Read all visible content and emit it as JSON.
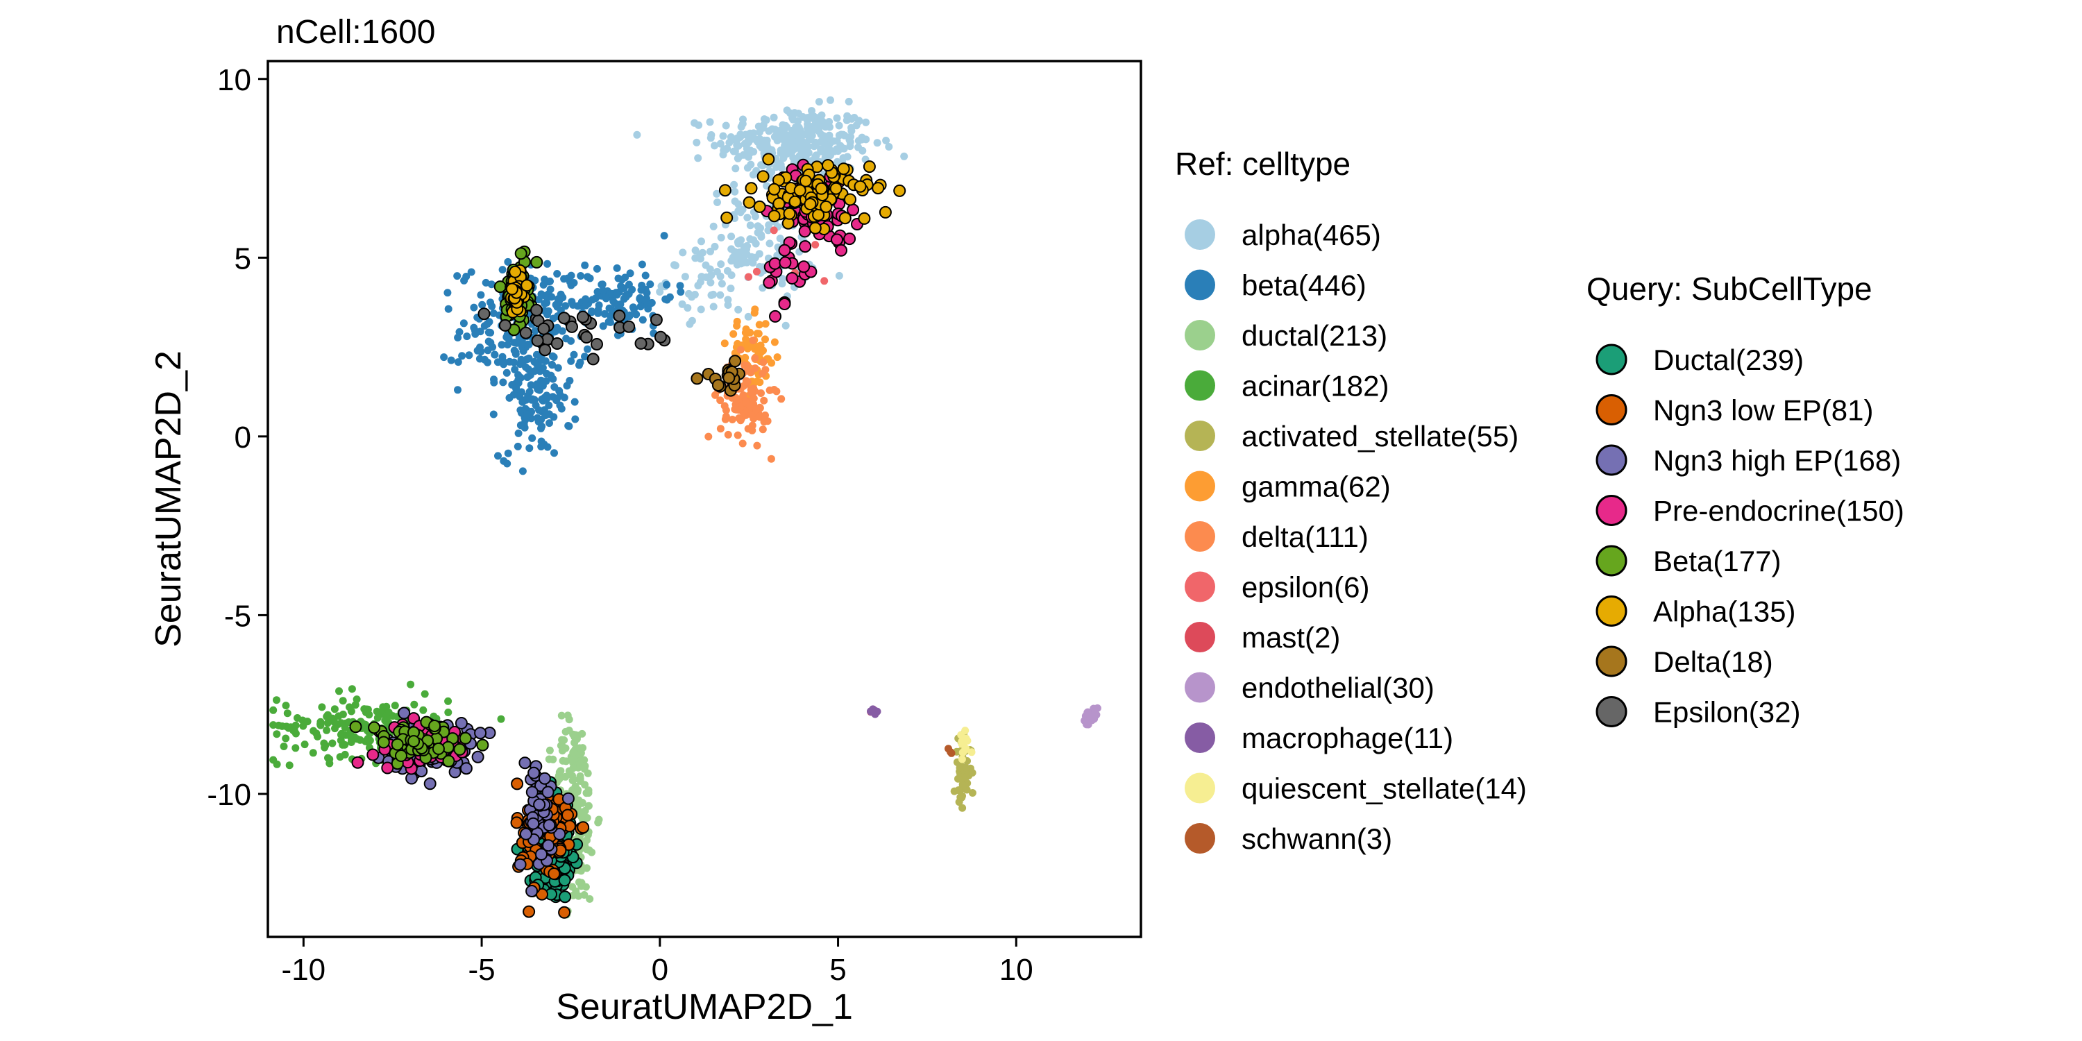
{
  "chart_data": {
    "type": "scatter",
    "title": "nCell:1600",
    "xlabel": "SeuratUMAP2D_1",
    "ylabel": "SeuratUMAP2D_2",
    "xlim": [
      -11,
      13.5
    ],
    "ylim": [
      -14,
      10.5
    ],
    "xticks": [
      -10,
      -5,
      0,
      5,
      10
    ],
    "yticks": [
      10,
      5,
      0,
      -5,
      -10
    ],
    "grid": false,
    "legends": [
      {
        "title": "Ref: celltype",
        "kind": "reference",
        "entries": [
          {
            "label": "alpha(465)",
            "color": "#a6cee3"
          },
          {
            "label": "beta(446)",
            "color": "#2a7fb8"
          },
          {
            "label": "ductal(213)",
            "color": "#9bd08d"
          },
          {
            "label": "acinar(182)",
            "color": "#4aab3a"
          },
          {
            "label": "activated_stellate(55)",
            "color": "#b5b455"
          },
          {
            "label": "gamma(62)",
            "color": "#fd9d33"
          },
          {
            "label": "delta(111)",
            "color": "#fc8b4f"
          },
          {
            "label": "epsilon(6)",
            "color": "#f0666a"
          },
          {
            "label": "mast(2)",
            "color": "#dd4a5a"
          },
          {
            "label": "endothelial(30)",
            "color": "#b794cb"
          },
          {
            "label": "macrophage(11)",
            "color": "#865ca4"
          },
          {
            "label": "quiescent_stellate(14)",
            "color": "#f6ee92"
          },
          {
            "label": "schwann(3)",
            "color": "#b55a2a"
          }
        ]
      },
      {
        "title": "Query: SubCellType",
        "kind": "query",
        "entries": [
          {
            "label": "Ductal(239)",
            "color": "#1b9e77"
          },
          {
            "label": "Ngn3 low EP(81)",
            "color": "#d95f02"
          },
          {
            "label": "Ngn3 high EP(168)",
            "color": "#7570b3"
          },
          {
            "label": "Pre-endocrine(150)",
            "color": "#e7298a"
          },
          {
            "label": "Beta(177)",
            "color": "#66a61e"
          },
          {
            "label": "Alpha(135)",
            "color": "#e6ab02"
          },
          {
            "label": "Delta(18)",
            "color": "#a6761d"
          },
          {
            "label": "Epsilon(32)",
            "color": "#666666"
          }
        ]
      }
    ],
    "reference_clusters": [
      {
        "group": "alpha",
        "n": 300,
        "cx": 3.8,
        "cy": 8.2,
        "sx": 1.1,
        "sy": 0.5
      },
      {
        "group": "alpha",
        "n": 120,
        "cx": 2.8,
        "cy": 5.4,
        "sx": 0.8,
        "sy": 0.8
      },
      {
        "group": "alpha",
        "n": 45,
        "cx": 1.4,
        "cy": 4.4,
        "sx": 0.6,
        "sy": 0.5
      },
      {
        "group": "beta",
        "n": 230,
        "cx": -3.8,
        "cy": 3.0,
        "sx": 0.9,
        "sy": 0.9
      },
      {
        "group": "beta",
        "n": 110,
        "cx": -3.5,
        "cy": 1.0,
        "sx": 0.5,
        "sy": 0.8
      },
      {
        "group": "beta",
        "n": 106,
        "cx": -1.2,
        "cy": 3.9,
        "sx": 0.8,
        "sy": 0.5
      },
      {
        "group": "ductal",
        "n": 213,
        "cx": -2.4,
        "cy": -10.5,
        "sx": 0.3,
        "sy": 1.3
      },
      {
        "group": "acinar",
        "n": 182,
        "cx": -8.3,
        "cy": -8.1,
        "sx": 1.2,
        "sy": 0.45
      },
      {
        "group": "activated_stellate",
        "n": 55,
        "cx": 8.5,
        "cy": -9.4,
        "sx": 0.12,
        "sy": 0.45
      },
      {
        "group": "gamma",
        "n": 62,
        "cx": 2.6,
        "cy": 2.3,
        "sx": 0.35,
        "sy": 0.5
      },
      {
        "group": "delta",
        "n": 111,
        "cx": 2.4,
        "cy": 1.1,
        "sx": 0.35,
        "sy": 0.6
      },
      {
        "group": "epsilon",
        "n": 6,
        "cx": 3.5,
        "cy": 5.0,
        "sx": 0.8,
        "sy": 1.2
      },
      {
        "group": "mast",
        "n": 2,
        "cx": 5.9,
        "cy": -7.7,
        "sx": 0.05,
        "sy": 0.05
      },
      {
        "group": "endothelial",
        "n": 30,
        "cx": 12.1,
        "cy": -7.9,
        "sx": 0.12,
        "sy": 0.12
      },
      {
        "group": "macrophage",
        "n": 11,
        "cx": 6.0,
        "cy": -7.7,
        "sx": 0.05,
        "sy": 0.05
      },
      {
        "group": "quiescent_stellate",
        "n": 14,
        "cx": 8.6,
        "cy": -8.5,
        "sx": 0.1,
        "sy": 0.2
      },
      {
        "group": "schwann",
        "n": 3,
        "cx": 8.1,
        "cy": -8.8,
        "sx": 0.1,
        "sy": 0.1
      }
    ],
    "query_clusters": [
      {
        "group": "Ductal",
        "n": 239,
        "cx": -3.1,
        "cy": -11.4,
        "sx": 0.3,
        "sy": 0.6
      },
      {
        "group": "Ngn3 low EP",
        "n": 81,
        "cx": -3.2,
        "cy": -11.2,
        "sx": 0.4,
        "sy": 0.8
      },
      {
        "group": "Ngn3 high EP",
        "n": 120,
        "cx": -6.5,
        "cy": -8.7,
        "sx": 0.6,
        "sy": 0.35
      },
      {
        "group": "Ngn3 high EP",
        "n": 48,
        "cx": -3.4,
        "cy": -10.6,
        "sx": 0.3,
        "sy": 0.8
      },
      {
        "group": "Pre-endocrine",
        "n": 60,
        "cx": -6.6,
        "cy": -8.6,
        "sx": 0.7,
        "sy": 0.3
      },
      {
        "group": "Pre-endocrine",
        "n": 70,
        "cx": 4.4,
        "cy": 6.5,
        "sx": 0.6,
        "sy": 0.5
      },
      {
        "group": "Pre-endocrine",
        "n": 20,
        "cx": 3.6,
        "cy": 4.6,
        "sx": 0.3,
        "sy": 0.6
      },
      {
        "group": "Beta",
        "n": 110,
        "cx": -4.0,
        "cy": 4.0,
        "sx": 0.15,
        "sy": 0.4
      },
      {
        "group": "Beta",
        "n": 67,
        "cx": -6.8,
        "cy": -8.6,
        "sx": 0.8,
        "sy": 0.3
      },
      {
        "group": "Alpha",
        "n": 100,
        "cx": 4.3,
        "cy": 6.8,
        "sx": 0.8,
        "sy": 0.4
      },
      {
        "group": "Alpha",
        "n": 35,
        "cx": -4.0,
        "cy": 4.0,
        "sx": 0.12,
        "sy": 0.3
      },
      {
        "group": "Delta",
        "n": 18,
        "cx": 1.8,
        "cy": 1.7,
        "sx": 0.3,
        "sy": 0.2
      },
      {
        "group": "Epsilon",
        "n": 32,
        "cx": -2.5,
        "cy": 2.9,
        "sx": 1.2,
        "sy": 0.3
      }
    ]
  }
}
